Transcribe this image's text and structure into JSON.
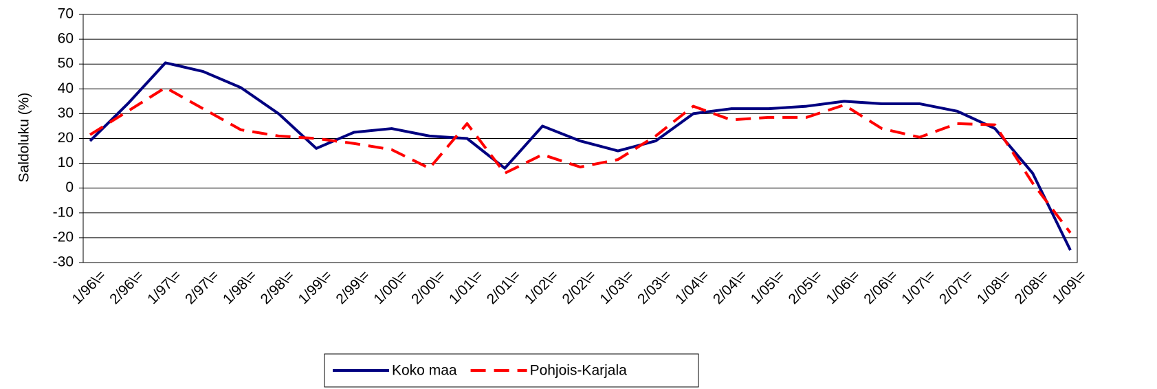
{
  "chart_data": {
    "type": "line",
    "y_label": "Saldoluku (%)",
    "categories": [
      "1/96\\=",
      "2/96\\=",
      "1/97\\=",
      "2/97\\=",
      "1/98\\=",
      "2/98\\=",
      "1/99\\=",
      "2/99\\=",
      "1/00\\=",
      "2/00\\=",
      "1/01\\=",
      "2/01\\=",
      "1/02\\=",
      "2/02\\=",
      "1/03\\=",
      "2/03\\=",
      "1/04\\=",
      "2/04\\=",
      "1/05\\=",
      "2/05\\=",
      "1/06\\=",
      "2/06\\=",
      "1/07\\=",
      "2/07\\=",
      "1/08\\=",
      "2/08\\=",
      "1/09\\="
    ],
    "series": [
      {
        "name": "Koko maa",
        "color": "#000080",
        "dash": false,
        "values": [
          19,
          34,
          50.5,
          47,
          40.5,
          30,
          16,
          22.5,
          24,
          21,
          20,
          8,
          25,
          19,
          15,
          19,
          30,
          32,
          32,
          33,
          35,
          34,
          34,
          31,
          24,
          6,
          -25
        ]
      },
      {
        "name": "Pohjois-Karjala",
        "color": "#ff0000",
        "dash": true,
        "values": [
          21.5,
          31,
          40.5,
          32,
          23.5,
          21,
          20,
          18,
          15.5,
          8,
          26,
          6,
          13.5,
          8.5,
          11.5,
          21,
          33,
          27.5,
          28.5,
          28.5,
          33.5,
          24,
          20.5,
          26,
          25.5,
          2,
          -18
        ]
      }
    ],
    "ylim": [
      -30,
      70
    ],
    "yticks": [
      -30,
      -20,
      -10,
      0,
      10,
      20,
      30,
      40,
      50,
      60,
      70
    ],
    "grid": true
  }
}
